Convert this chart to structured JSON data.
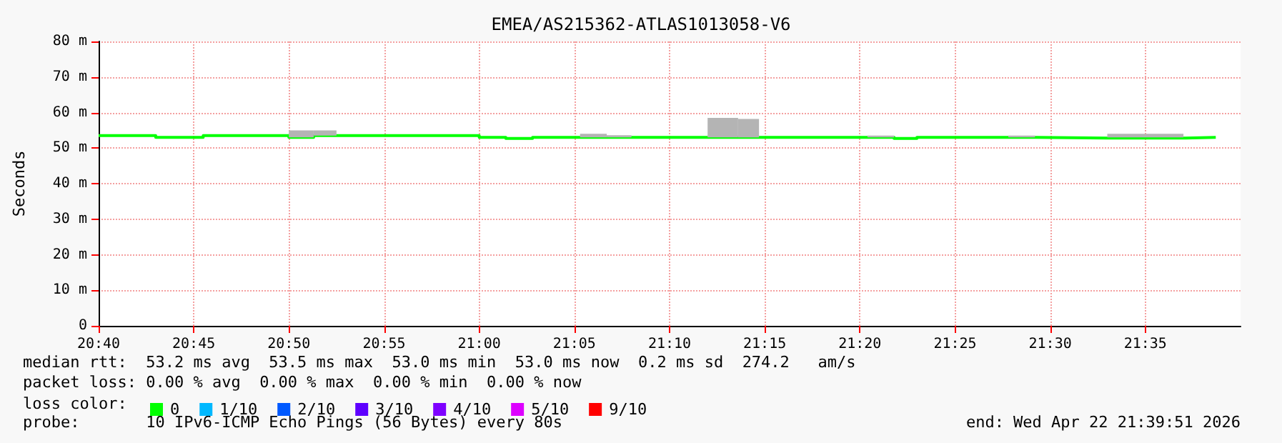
{
  "chart_data": {
    "type": "step",
    "title": "EMEA/AS215362-ATLAS1013058-V6",
    "ylabel": "Seconds",
    "legend_title": "loss color:",
    "legend": "bottom",
    "x": [
      20.6667,
      20.7167,
      20.7583,
      20.8333,
      20.855,
      20.875,
      21.0,
      21.0233,
      21.0467,
      21.0883,
      21.1117,
      21.1333,
      21.2,
      21.2267,
      21.245,
      21.34,
      21.3633,
      21.3833,
      21.4633,
      21.4867,
      21.55,
      21.6167,
      21.6183,
      21.645
    ],
    "series": [
      {
        "name": "0",
        "color": "#00ff00",
        "values": [
          53.5,
          53.0,
          53.5,
          53.0,
          53.5,
          53.5,
          53.0,
          52.7,
          53.0,
          53.0,
          53.0,
          53.0,
          53.0,
          53.0,
          53.0,
          53.0,
          52.7,
          53.0,
          53.0,
          52.8,
          52.8,
          52.8,
          53.0,
          53.0
        ],
        "lower": [
          null,
          null,
          null,
          53.0,
          53.5,
          53.5,
          null,
          null,
          null,
          53.0,
          53.0,
          53.0,
          53.0,
          53.0,
          53.0,
          53.0,
          null,
          null,
          53.0,
          null,
          53.0,
          53.0,
          null,
          null
        ],
        "upper": [
          null,
          null,
          null,
          55.0,
          55.0,
          55.0,
          null,
          null,
          null,
          54.0,
          53.6,
          53.6,
          58.5,
          58.2,
          58.2,
          53.5,
          null,
          null,
          53.5,
          null,
          54.0,
          54.0,
          null,
          null
        ]
      },
      {
        "name": "1/10",
        "color": "#00b8ff",
        "values": [
          null,
          null,
          null,
          null,
          null,
          null,
          null,
          null,
          null,
          null,
          null,
          null,
          null,
          null,
          null,
          null,
          null,
          null,
          null,
          null,
          null,
          null,
          null,
          null
        ]
      },
      {
        "name": "2/10",
        "color": "#0059ff",
        "values": [
          null,
          null,
          null,
          null,
          null,
          null,
          null,
          null,
          null,
          null,
          null,
          null,
          null,
          null,
          null,
          null,
          null,
          null,
          null,
          null,
          null,
          null,
          null,
          null
        ]
      },
      {
        "name": "3/10",
        "color": "#5e00ff",
        "values": [
          null,
          null,
          null,
          null,
          null,
          null,
          null,
          null,
          null,
          null,
          null,
          null,
          null,
          null,
          null,
          null,
          null,
          null,
          null,
          null,
          null,
          null,
          null,
          null
        ]
      },
      {
        "name": "4/10",
        "color": "#7e00ff",
        "values": [
          null,
          null,
          null,
          null,
          null,
          null,
          null,
          null,
          null,
          null,
          null,
          null,
          null,
          null,
          null,
          null,
          null,
          null,
          null,
          null,
          null,
          null,
          null,
          null
        ]
      },
      {
        "name": "5/10",
        "color": "#dd00ff",
        "values": [
          null,
          null,
          null,
          null,
          null,
          null,
          null,
          null,
          null,
          null,
          null,
          null,
          null,
          null,
          null,
          null,
          null,
          null,
          null,
          null,
          null,
          null,
          null,
          null
        ]
      },
      {
        "name": "9/10",
        "color": "#ff0000",
        "values": [
          null,
          null,
          null,
          null,
          null,
          null,
          null,
          null,
          null,
          null,
          null,
          null,
          null,
          null,
          null,
          null,
          null,
          null,
          null,
          null,
          null,
          null,
          null,
          null
        ]
      }
    ],
    "xlim": [
      20.6667,
      21.6667
    ],
    "xticks": [
      {
        "value": 20.6667,
        "label": "20:40"
      },
      {
        "value": 20.75,
        "label": "20:45"
      },
      {
        "value": 20.8333,
        "label": "20:50"
      },
      {
        "value": 20.9167,
        "label": "20:55"
      },
      {
        "value": 21.0,
        "label": "21:00"
      },
      {
        "value": 21.0833,
        "label": "21:05"
      },
      {
        "value": 21.1667,
        "label": "21:10"
      },
      {
        "value": 21.25,
        "label": "21:15"
      },
      {
        "value": 21.3333,
        "label": "21:20"
      },
      {
        "value": 21.4167,
        "label": "21:25"
      },
      {
        "value": 21.5,
        "label": "21:30"
      },
      {
        "value": 21.5833,
        "label": "21:35"
      }
    ],
    "ylim": [
      0,
      80
    ],
    "yticks": [
      0,
      {
        "value": 10,
        "label": "10 m"
      },
      {
        "value": 20,
        "label": "20 m"
      },
      {
        "value": 30,
        "label": "30 m"
      },
      {
        "value": 40,
        "label": "40 m"
      },
      {
        "value": 50,
        "label": "50 m"
      },
      {
        "value": 60,
        "label": "60 m"
      },
      {
        "value": 70,
        "label": "70 m"
      },
      {
        "value": 80,
        "label": "80 m"
      }
    ],
    "grid": true,
    "annotations": [
      "median rtt:  53.2 ms avg  53.5 ms max  53.0 ms min  53.0 ms now  0.2 ms sd  274.2   am/s",
      "packet loss: 0.00 % avg  0.00 % max  0.00 % min  0.00 % now",
      "probe:       10 IPv6-ICMP Echo Pings (56 Bytes) every 80s",
      "end: Wed Apr 22 21:39:51 2026"
    ]
  }
}
